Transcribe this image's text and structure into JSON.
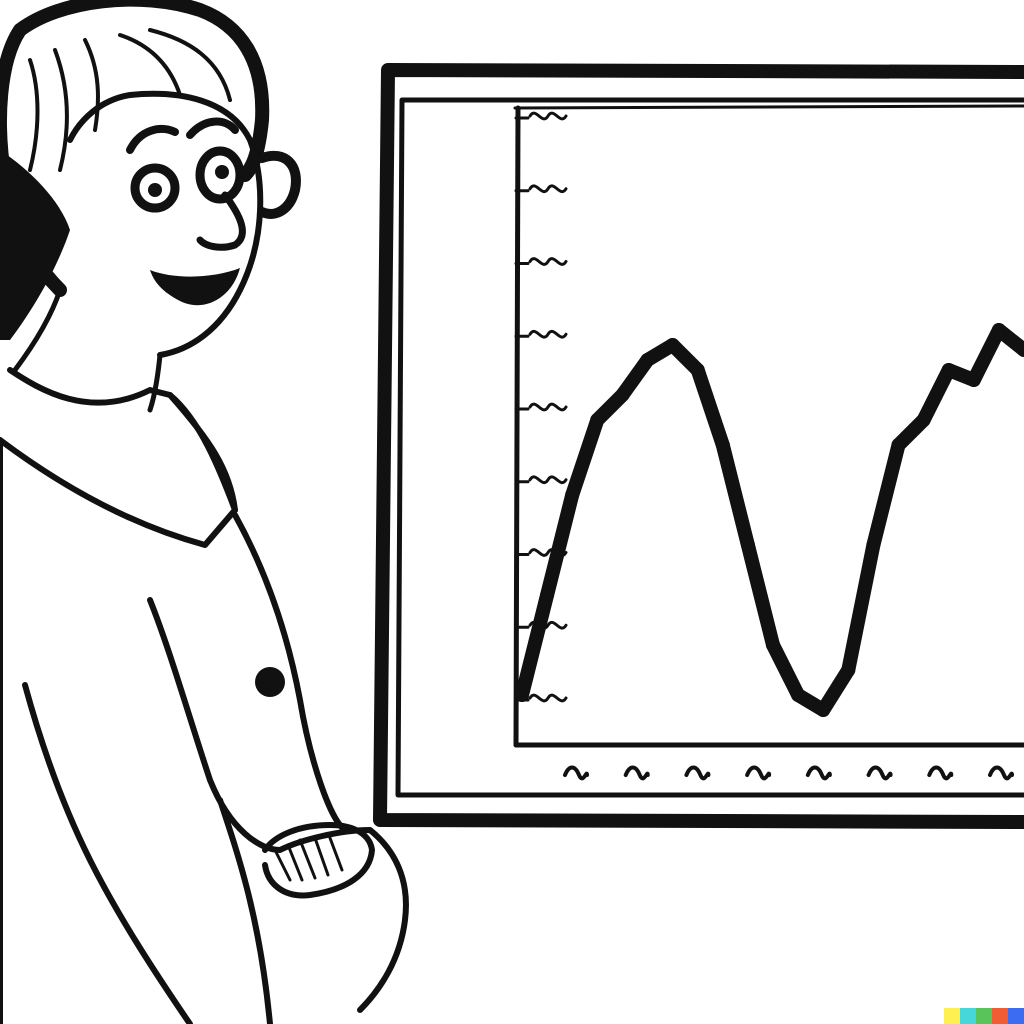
{
  "chart_data": {
    "type": "line",
    "title": "",
    "xlabel": "",
    "ylabel": "",
    "y_tick_labels": [
      "",
      "",
      "",
      "",
      "",
      "",
      "",
      "",
      ""
    ],
    "x_tick_labels": [
      "",
      "",
      "",
      "",
      "",
      "",
      "",
      ""
    ],
    "grid": false,
    "legend": "none",
    "series": [
      {
        "x": [
          0,
          1,
          2,
          3,
          4,
          5,
          6,
          7,
          8,
          9,
          10,
          11,
          12,
          13,
          14,
          15,
          16,
          17,
          18,
          19,
          20
        ],
        "values": [
          0.05,
          0.25,
          0.45,
          0.6,
          0.65,
          0.72,
          0.75,
          0.7,
          0.55,
          0.35,
          0.15,
          0.05,
          0.02,
          0.1,
          0.35,
          0.55,
          0.6,
          0.7,
          0.68,
          0.78,
          0.74
        ]
      }
    ]
  },
  "colors": {
    "ink": "#111111",
    "paper": "#ffffff"
  }
}
